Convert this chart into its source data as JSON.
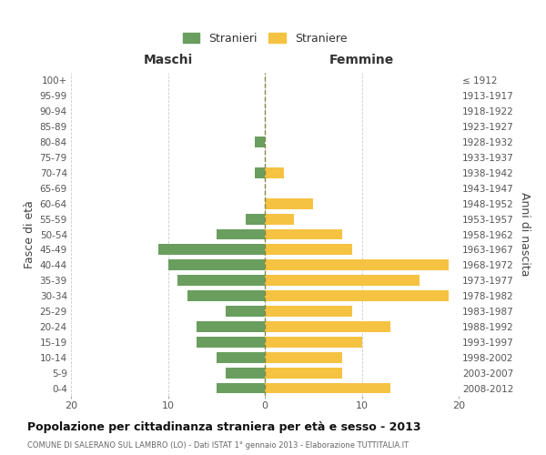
{
  "age_groups": [
    "100+",
    "95-99",
    "90-94",
    "85-89",
    "80-84",
    "75-79",
    "70-74",
    "65-69",
    "60-64",
    "55-59",
    "50-54",
    "45-49",
    "40-44",
    "35-39",
    "30-34",
    "25-29",
    "20-24",
    "15-19",
    "10-14",
    "5-9",
    "0-4"
  ],
  "birth_years": [
    "≤ 1912",
    "1913-1917",
    "1918-1922",
    "1923-1927",
    "1928-1932",
    "1933-1937",
    "1938-1942",
    "1943-1947",
    "1948-1952",
    "1953-1957",
    "1958-1962",
    "1963-1967",
    "1968-1972",
    "1973-1977",
    "1978-1982",
    "1983-1987",
    "1988-1992",
    "1993-1997",
    "1998-2002",
    "2003-2007",
    "2008-2012"
  ],
  "males": [
    0,
    0,
    0,
    0,
    1,
    0,
    1,
    0,
    0,
    2,
    5,
    11,
    10,
    9,
    8,
    4,
    7,
    7,
    5,
    4,
    5
  ],
  "females": [
    0,
    0,
    0,
    0,
    0,
    0,
    2,
    0,
    5,
    3,
    8,
    9,
    19,
    16,
    19,
    9,
    13,
    10,
    8,
    8,
    13
  ],
  "male_color": "#6a9e5f",
  "female_color": "#f5c242",
  "background_color": "#ffffff",
  "grid_color": "#cccccc",
  "dashed_line_color": "#888844",
  "title": "Popolazione per cittadinanza straniera per età e sesso - 2013",
  "subtitle": "COMUNE DI SALERANO SUL LAMBRO (LO) - Dati ISTAT 1° gennaio 2013 - Elaborazione TUTTITALIA.IT",
  "xlabel_left": "Maschi",
  "xlabel_right": "Femmine",
  "ylabel_left": "Fasce di età",
  "ylabel_right": "Anni di nascita",
  "xlim": 20,
  "legend_male": "Stranieri",
  "legend_female": "Straniere"
}
